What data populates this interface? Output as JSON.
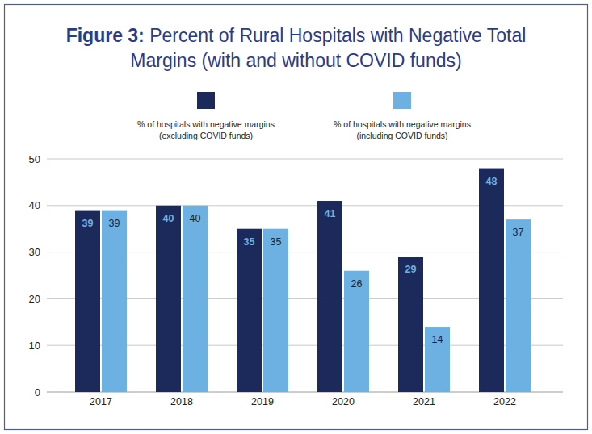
{
  "chart_data": {
    "type": "bar",
    "title": "Figure 3: Percent of Rural Hospitals with Negative Total Margins (with and without COVID funds)",
    "categories": [
      "2017",
      "2018",
      "2019",
      "2020",
      "2021",
      "2022"
    ],
    "series": [
      {
        "name": "% of hospitals with negative margins (excluding COVID funds)",
        "color": "#1b2a5a",
        "values": [
          39,
          40,
          35,
          41,
          29,
          48
        ]
      },
      {
        "name": "% of hospitals with negative margins (including COVID funds)",
        "color": "#6db1e2",
        "values": [
          39,
          40,
          35,
          26,
          14,
          37
        ]
      }
    ],
    "ylim": [
      0,
      50
    ],
    "yticks": [
      0,
      10,
      20,
      30,
      40,
      50
    ],
    "grid": true,
    "legend": "top",
    "data_labels": true
  }
}
